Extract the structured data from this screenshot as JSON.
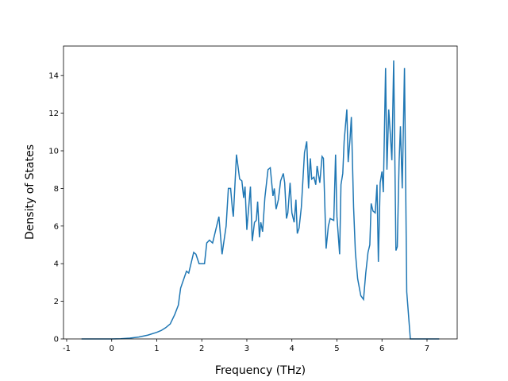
{
  "chart_data": {
    "type": "line",
    "x_label": "Frequency (THz)",
    "y_label": "Density of States",
    "xlim": [
      -1.07,
      7.67
    ],
    "ylim": [
      0,
      15.57
    ],
    "xticks": [
      -1,
      0,
      1,
      2,
      3,
      4,
      5,
      6,
      7
    ],
    "yticks": [
      0,
      2,
      4,
      6,
      8,
      10,
      12,
      14
    ],
    "series": [
      {
        "color": "#1f77b4",
        "x": [
          -0.67,
          0,
          0.2,
          0.4,
          0.6,
          0.8,
          1.0,
          1.1,
          1.2,
          1.3,
          1.4,
          1.48,
          1.53,
          1.66,
          1.71,
          1.82,
          1.87,
          1.94,
          2.06,
          2.11,
          2.17,
          2.24,
          2.31,
          2.38,
          2.45,
          2.54,
          2.59,
          2.64,
          2.68,
          2.7,
          2.77,
          2.84,
          2.89,
          2.93,
          2.96,
          3.0,
          3.08,
          3.12,
          3.17,
          3.21,
          3.24,
          3.28,
          3.31,
          3.35,
          3.4,
          3.47,
          3.52,
          3.58,
          3.61,
          3.65,
          3.7,
          3.75,
          3.81,
          3.84,
          3.88,
          3.91,
          3.96,
          4.0,
          4.05,
          4.09,
          4.12,
          4.16,
          4.21,
          4.28,
          4.33,
          4.37,
          4.41,
          4.44,
          4.49,
          4.53,
          4.56,
          4.62,
          4.67,
          4.7,
          4.76,
          4.81,
          4.85,
          4.93,
          4.97,
          5.0,
          5.06,
          5.09,
          5.13,
          5.16,
          5.22,
          5.25,
          5.29,
          5.32,
          5.37,
          5.41,
          5.46,
          5.53,
          5.59,
          5.64,
          5.69,
          5.73,
          5.76,
          5.8,
          5.85,
          5.89,
          5.92,
          5.96,
          6.0,
          6.03,
          6.08,
          6.11,
          6.15,
          6.19,
          6.22,
          6.26,
          6.31,
          6.34,
          6.38,
          6.41,
          6.45,
          6.5,
          6.55,
          6.63,
          7.27
        ],
        "values": [
          0,
          0,
          0.01,
          0.04,
          0.1,
          0.2,
          0.35,
          0.45,
          0.6,
          0.8,
          1.3,
          1.8,
          2.7,
          3.6,
          3.5,
          4.6,
          4.5,
          4.0,
          4.0,
          5.1,
          5.25,
          5.1,
          5.8,
          6.5,
          4.5,
          6.0,
          8.0,
          8.0,
          6.9,
          6.5,
          9.8,
          8.5,
          8.4,
          7.5,
          8.1,
          5.8,
          8.1,
          5.2,
          6.2,
          6.3,
          7.3,
          5.4,
          6.2,
          5.7,
          7.5,
          9.0,
          9.1,
          7.6,
          8.0,
          6.9,
          7.4,
          8.4,
          8.8,
          8.3,
          6.4,
          6.7,
          8.3,
          6.7,
          6.2,
          7.4,
          5.6,
          5.9,
          7.0,
          9.9,
          10.5,
          8.0,
          9.6,
          8.5,
          8.6,
          8.2,
          9.2,
          8.3,
          9.7,
          9.6,
          4.8,
          6.0,
          6.4,
          6.3,
          9.8,
          6.5,
          4.5,
          8.2,
          8.8,
          10.5,
          12.2,
          9.4,
          10.6,
          11.8,
          7.0,
          4.6,
          3.2,
          2.3,
          2.1,
          3.5,
          4.6,
          5.0,
          7.2,
          6.8,
          6.7,
          8.2,
          4.1,
          8.3,
          8.9,
          7.8,
          14.4,
          9.0,
          12.2,
          10.7,
          9.5,
          14.8,
          4.7,
          4.9,
          9.4,
          11.3,
          8.0,
          14.4,
          2.5,
          0,
          0
        ]
      }
    ]
  }
}
